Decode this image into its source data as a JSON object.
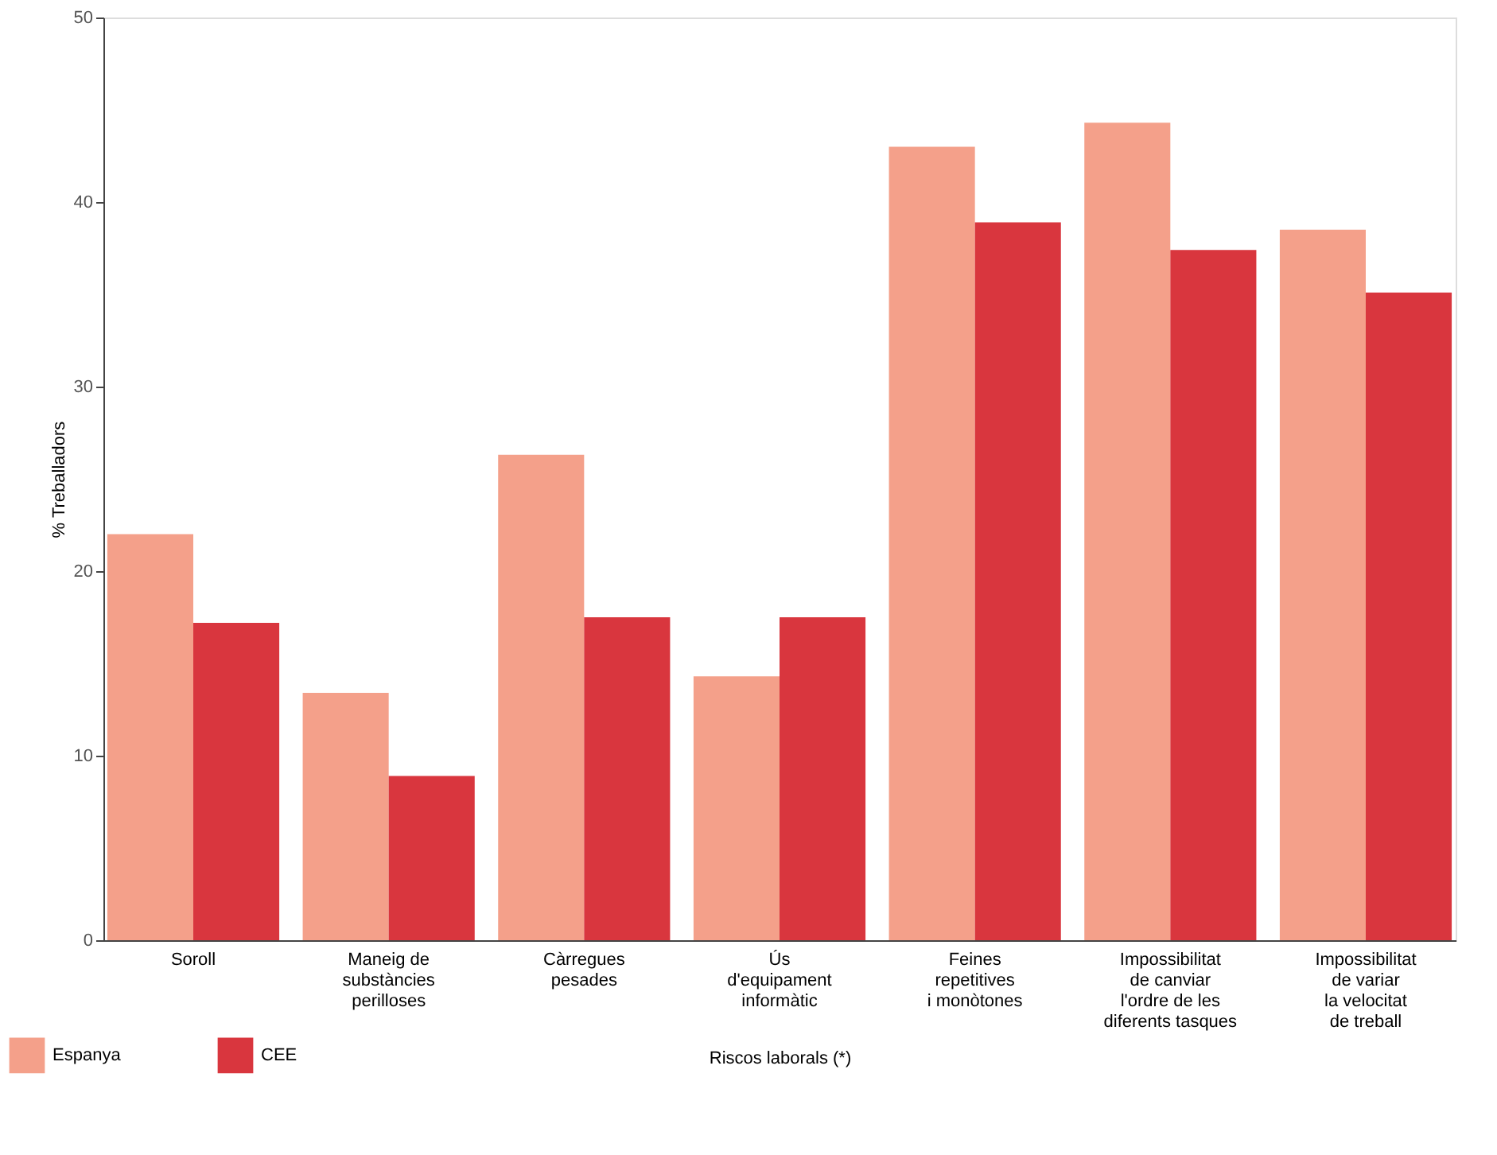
{
  "chart_data": {
    "type": "bar",
    "xlabel": "Riscos laborals (*)",
    "ylabel": "% Treballadors",
    "categories": [
      "Soroll",
      "Maneig de\nsubstàncies\nperilloses",
      "Càrregues\npesades",
      "Ús\nd'equipament\ninformàtic",
      "Feines\nrepetitives\ni monòtones",
      "Impossibilitat\nde canviar\nl'ordre de les\ndiferents tasques",
      "Impossibilitat\nde variar\nla velocitat\nde treball"
    ],
    "series": [
      {
        "name": "Espanya",
        "color": "#f4a08a",
        "values": [
          22,
          13.4,
          26.3,
          14.3,
          43,
          44.3,
          38.5
        ]
      },
      {
        "name": "CEE",
        "color": "#d9363e",
        "values": [
          17.2,
          8.9,
          17.5,
          17.5,
          38.9,
          37.4,
          35.1
        ]
      }
    ],
    "ylim": [
      0,
      50
    ],
    "yticks": [
      0,
      10,
      20,
      30,
      40,
      50
    ],
    "grid": false,
    "legend": "bottom left"
  }
}
